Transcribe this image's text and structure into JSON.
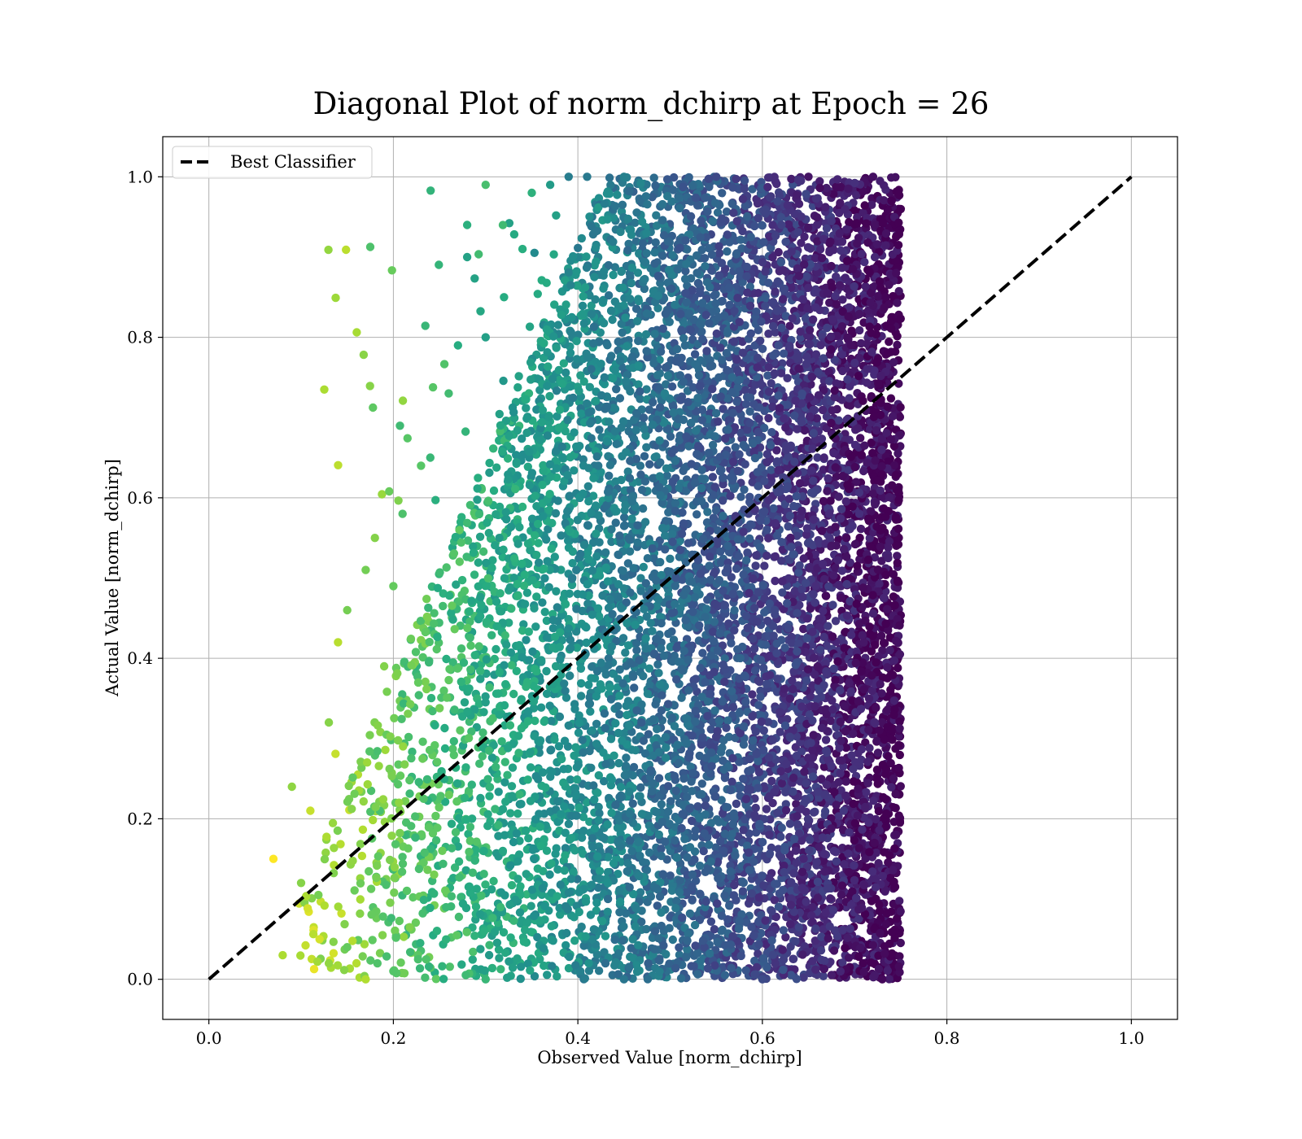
{
  "chart_data": {
    "type": "scatter",
    "title": "Diagonal Plot of norm_dchirp at Epoch = 26",
    "xlabel": "Observed Value [norm_dchirp]",
    "ylabel": "Actual Value [norm_dchirp]",
    "xlim": [
      -0.05,
      1.05
    ],
    "ylim": [
      -0.05,
      1.05
    ],
    "xticks": [
      0.0,
      0.2,
      0.4,
      0.6,
      0.8,
      1.0
    ],
    "yticks": [
      0.0,
      0.2,
      0.4,
      0.6,
      0.8,
      1.0
    ],
    "xtick_labels": [
      "0.0",
      "0.2",
      "0.4",
      "0.6",
      "0.8",
      "1.0"
    ],
    "ytick_labels": [
      "0.0",
      "0.2",
      "0.4",
      "0.6",
      "0.8",
      "1.0"
    ],
    "grid": true,
    "legend": {
      "position": "top-left",
      "entries": [
        "Best Classifier"
      ]
    },
    "colormap": "viridis",
    "series": [
      {
        "type": "scatter",
        "description_of_distribution": "dense points with observed in 0.07-0.75 and actual in 0.0-1.0; observed above ~0.45 fills the full actual range",
        "x_range": [
          0.07,
          0.75
        ],
        "y_range": [
          0.0,
          1.0
        ],
        "sample_points": [
          [
            0.07,
            0.15
          ],
          [
            0.08,
            0.03
          ],
          [
            0.09,
            0.24
          ],
          [
            0.1,
            0.12
          ],
          [
            0.11,
            0.21
          ],
          [
            0.12,
            0.05
          ],
          [
            0.13,
            0.32
          ],
          [
            0.14,
            0.42
          ],
          [
            0.15,
            0.46
          ],
          [
            0.17,
            0.51
          ],
          [
            0.18,
            0.55
          ],
          [
            0.19,
            0.39
          ],
          [
            0.2,
            0.49
          ],
          [
            0.21,
            0.58
          ],
          [
            0.23,
            0.64
          ],
          [
            0.24,
            0.65
          ],
          [
            0.26,
            0.73
          ],
          [
            0.27,
            0.79
          ],
          [
            0.28,
            0.94
          ],
          [
            0.28,
            0.9
          ],
          [
            0.3,
            0.99
          ],
          [
            0.3,
            0.8
          ],
          [
            0.32,
            0.85
          ],
          [
            0.34,
            0.91
          ],
          [
            0.35,
            0.98
          ],
          [
            0.37,
            0.99
          ],
          [
            0.39,
            1.0
          ],
          [
            0.41,
            1.0
          ],
          [
            0.45,
            1.0
          ],
          [
            0.55,
            1.0
          ],
          [
            0.65,
            1.0
          ],
          [
            0.72,
            1.0
          ],
          [
            0.74,
            0.97
          ],
          [
            0.745,
            0.88
          ],
          [
            0.745,
            0.18
          ],
          [
            0.73,
            0.0
          ],
          [
            0.6,
            0.0
          ],
          [
            0.45,
            0.0
          ],
          [
            0.3,
            0.0
          ],
          [
            0.17,
            0.0
          ],
          [
            0.15,
            0.04
          ],
          [
            0.13,
            0.02
          ],
          [
            0.16,
            0.02
          ],
          [
            0.2,
            0.01
          ],
          [
            0.67,
            0.38
          ]
        ]
      },
      {
        "name": "Best Classifier",
        "type": "line",
        "style": "dashed",
        "color": "#000000",
        "x": [
          0.0,
          1.0
        ],
        "y": [
          0.0,
          1.0
        ]
      }
    ]
  }
}
